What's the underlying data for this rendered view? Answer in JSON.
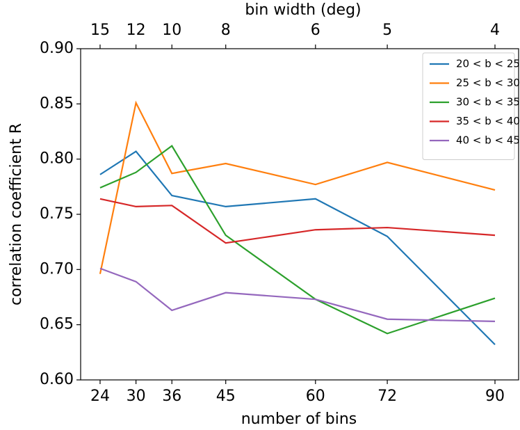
{
  "chart_data": {
    "type": "line",
    "xlabel": "number of bins",
    "ylabel": "correlation coefficient R",
    "x2label": "bin width (deg)",
    "x": [
      24,
      30,
      36,
      45,
      60,
      72,
      90
    ],
    "xlim": [
      20.75,
      93.95
    ],
    "xticks": [
      24,
      30,
      36,
      45,
      60,
      72,
      90
    ],
    "x2ticks": [
      {
        "value": 24,
        "label": "15"
      },
      {
        "value": 30,
        "label": "12"
      },
      {
        "value": 36,
        "label": "10"
      },
      {
        "value": 45,
        "label": "8"
      },
      {
        "value": 60,
        "label": "6"
      },
      {
        "value": 72,
        "label": "5"
      },
      {
        "value": 90,
        "label": "4"
      }
    ],
    "ylim": [
      0.6,
      0.9
    ],
    "yticks": [
      {
        "value": 0.6,
        "label": "0.60"
      },
      {
        "value": 0.65,
        "label": "0.65"
      },
      {
        "value": 0.7,
        "label": "0.70"
      },
      {
        "value": 0.75,
        "label": "0.75"
      },
      {
        "value": 0.8,
        "label": "0.80"
      },
      {
        "value": 0.85,
        "label": "0.85"
      },
      {
        "value": 0.9,
        "label": "0.90"
      }
    ],
    "legend": "upper right",
    "series": [
      {
        "name": "20 < b < 25",
        "color": "#1f77b4",
        "values": [
          0.786,
          0.807,
          0.767,
          0.757,
          0.764,
          0.73,
          0.632
        ]
      },
      {
        "name": "25 < b < 30",
        "color": "#ff7f0e",
        "values": [
          0.696,
          0.851,
          0.787,
          0.796,
          0.777,
          0.797,
          0.772
        ]
      },
      {
        "name": "30 < b < 35",
        "color": "#2ca02c",
        "values": [
          0.774,
          0.788,
          0.812,
          0.731,
          0.673,
          0.642,
          0.674
        ]
      },
      {
        "name": "35 < b < 40",
        "color": "#d62728",
        "values": [
          0.764,
          0.757,
          0.758,
          0.724,
          0.736,
          0.738,
          0.731
        ]
      },
      {
        "name": "40 < b < 45",
        "color": "#9467bd",
        "values": [
          0.701,
          0.689,
          0.663,
          0.679,
          0.673,
          0.655,
          0.653
        ]
      }
    ]
  }
}
